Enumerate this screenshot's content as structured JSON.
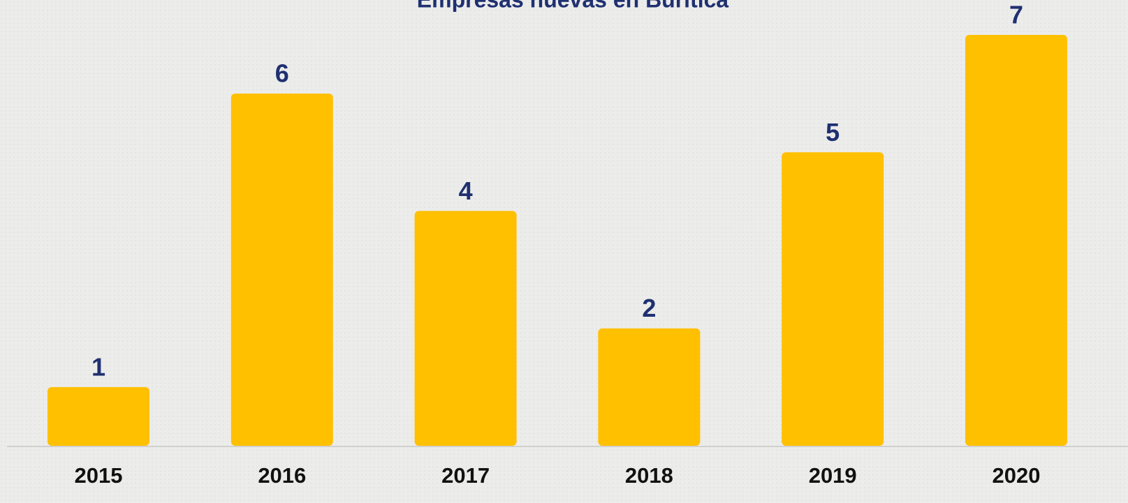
{
  "chart_data": {
    "type": "bar",
    "title": "Empresas nuevas en Buriticá",
    "categories": [
      "2015",
      "2016",
      "2017",
      "2018",
      "2019",
      "2020"
    ],
    "values": [
      1,
      6,
      4,
      2,
      5,
      7
    ],
    "color": "#ffc000",
    "label_color": "#1f3070"
  }
}
